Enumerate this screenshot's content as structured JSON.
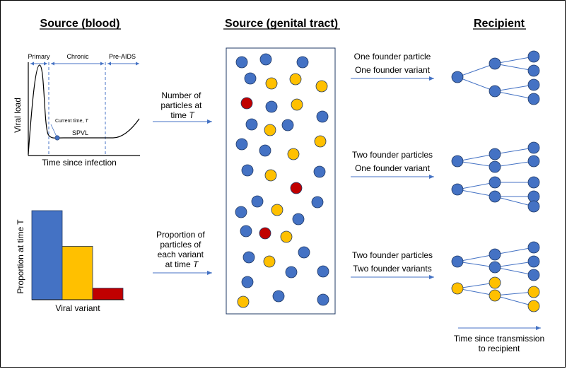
{
  "headers": {
    "blood": "Source (blood)",
    "genital": "Source (genital tract)",
    "recipient": "Recipient"
  },
  "viral_load_plot": {
    "ylabel": "Viral load",
    "xlabel": "Time since infection",
    "phases": {
      "primary": "Primary",
      "chronic": "Chronic",
      "pre_aids": "Pre-AIDS"
    },
    "current_time": "Current time, ",
    "current_time_var": "T",
    "spvl": "SPVL"
  },
  "variant_chart": {
    "ylabel": "Proportion at time T",
    "xlabel": "Viral variant",
    "values": [
      1.0,
      0.6,
      0.13
    ],
    "colors": [
      "#4472C4",
      "#FFC000",
      "#C00000"
    ]
  },
  "arrows": {
    "count": {
      "line1": "Number of",
      "line2": "particles at",
      "line3": "time ",
      "var": "T"
    },
    "proportion": {
      "line1": "Proportion of",
      "line2": "particles of",
      "line3": "each variant",
      "line4": "at time ",
      "var": "T"
    }
  },
  "scenarios": [
    {
      "line1": "One founder particle",
      "line2": "One founder variant"
    },
    {
      "line1": "Two founder particles",
      "line2": "One founder variant"
    },
    {
      "line1": "Two founder particles",
      "line2": "Two founder variants"
    }
  ],
  "time_label": {
    "line1": "Time since transmission",
    "line2": "to recipient"
  },
  "colors": {
    "blue": "#4472C4",
    "yellow": "#FFC000",
    "red": "#C00000",
    "arrow": "#4472C4",
    "outline": "#1F3864"
  }
}
